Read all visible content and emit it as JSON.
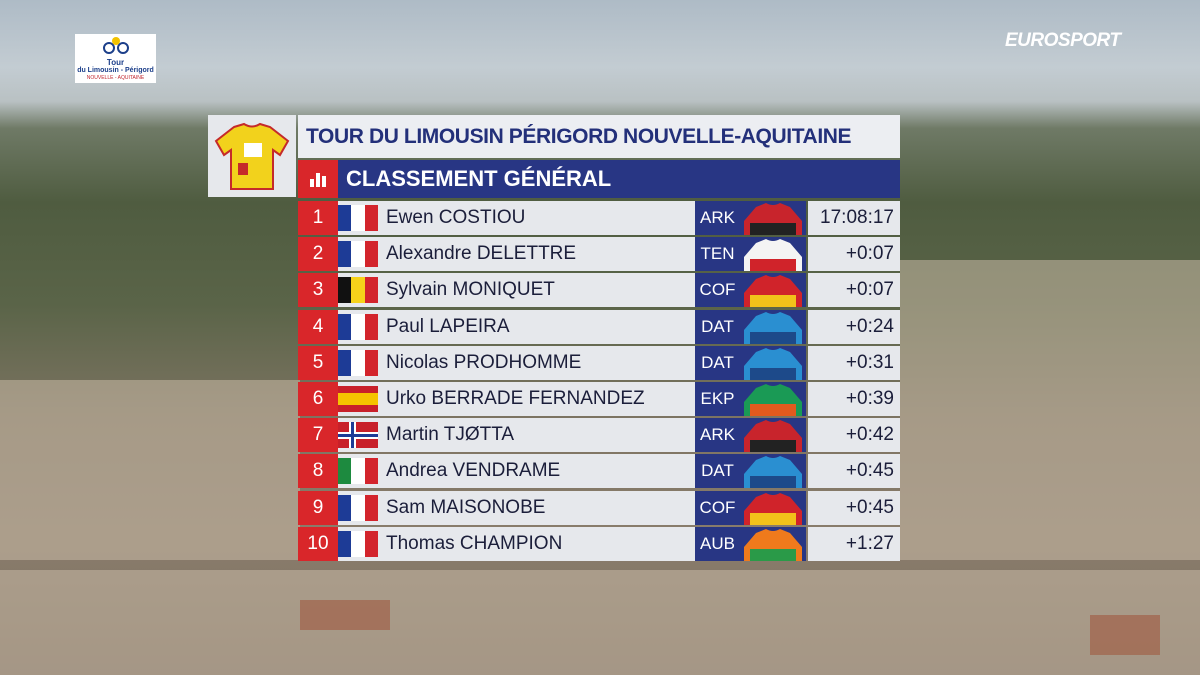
{
  "broadcaster": "EUROSPORT",
  "race_logo": {
    "line1": "Tour",
    "line2": "du Limousin - Périgord",
    "line3": "NOUVELLE - AQUITAINE"
  },
  "header": {
    "title": "TOUR DU LIMOUSIN PÉRIGORD NOUVELLE-AQUITAINE",
    "subtitle": "CLASSEMENT GÉNÉRAL"
  },
  "table": {
    "rows": [
      [
        1,
        "Ewen COSTIOU",
        "ARK",
        "17:08:17"
      ],
      [
        2,
        "Alexandre DELETTRE",
        "TEN",
        "+0:07"
      ],
      [
        3,
        "Sylvain MONIQUET",
        "COF",
        "+0:07"
      ],
      [
        4,
        "Paul LAPEIRA",
        "DAT",
        "+0:24"
      ],
      [
        5,
        "Nicolas PRODHOMME",
        "DAT",
        "+0:31"
      ],
      [
        6,
        "Urko BERRADE FERNANDEZ",
        "EKP",
        "+0:39"
      ],
      [
        7,
        "Martin TJØTTA",
        "ARK",
        "+0:42"
      ],
      [
        8,
        "Andrea VENDRAME",
        "DAT",
        "+0:45"
      ],
      [
        9,
        "Sam MAISONOBE",
        "COF",
        "+0:45"
      ],
      [
        10,
        "Thomas CHAMPION",
        "AUB",
        "+1:27"
      ]
    ]
  }
}
